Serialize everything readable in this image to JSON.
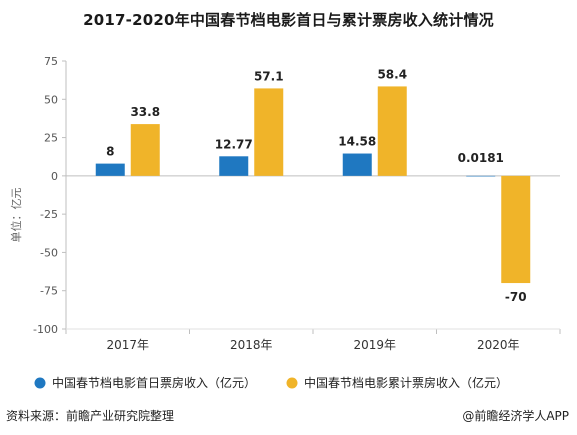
{
  "header": {
    "title": "2017-2020年中国春节档电影首日与累计票房收入统计情况"
  },
  "footer": {
    "source": "资料来源：前瞻产业研究院整理",
    "credit": "@前瞻经济学人APP"
  },
  "chart_data": {
    "type": "bar",
    "title": "2017-2020年中国春节档电影首日与累计票房收入统计情况",
    "ylabel": "单位：亿元",
    "xlabel": "",
    "ylim": [
      -100,
      75
    ],
    "yticks": [
      75,
      50,
      25,
      0,
      -25,
      -50,
      -75,
      -100
    ],
    "grid": false,
    "legend_position": "bottom-left",
    "categories": [
      "2017年",
      "2018年",
      "2019年",
      "2020年"
    ],
    "series": [
      {
        "name": "中国春节档电影首日票房收入（亿元）",
        "color": "#1f78c1",
        "values": [
          8,
          12.77,
          14.58,
          0.0181
        ],
        "labels": [
          "8",
          "12.77",
          "14.58",
          "0.0181"
        ]
      },
      {
        "name": "中国春节档电影累计票房收入（亿元）",
        "color": "#f0b429",
        "values": [
          33.8,
          57.1,
          58.4,
          -70
        ],
        "labels": [
          "33.8",
          "57.1",
          "58.4",
          "-70"
        ]
      }
    ]
  }
}
